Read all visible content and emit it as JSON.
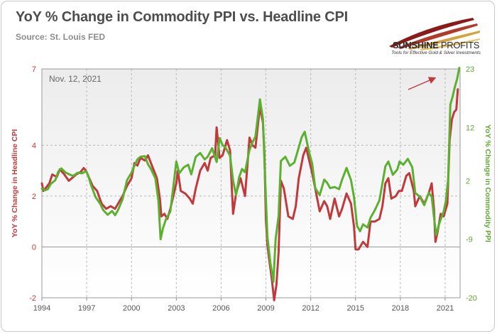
{
  "title": "YoY % Change in Commodity PPI vs. Headline CPI",
  "subtitle": "Source: St. Louis FED",
  "logo": {
    "brand": "SUNSHINE PROFITS",
    "brand_bold": "SUNSHINE",
    "brand_light": " PROFITS",
    "tagline": "Tools for Effective Gold & Silver Investments"
  },
  "colors": {
    "cpi": "#c0393b",
    "ppi": "#5bb12f",
    "left_axis_text": "#c0393b",
    "right_axis_text": "#5fa832",
    "arrow": "#c0393b"
  },
  "chart_data": {
    "type": "line",
    "annotation": "Nov. 12, 2021",
    "x_range": [
      1994.0,
      2022.0
    ],
    "x_ticks": [
      1994,
      1997,
      2000,
      2003,
      2006,
      2009,
      2012,
      2015,
      2018,
      2021
    ],
    "left_axis": {
      "label": "YoY % Change in Headline CPI",
      "range": [
        -2,
        7
      ],
      "ticks": [
        -2,
        0,
        2,
        4,
        7
      ]
    },
    "right_axis": {
      "label": "YoY % Change in Commodity PPI",
      "range": [
        -20,
        23
      ],
      "ticks": [
        -20,
        -9,
        2,
        12,
        23
      ]
    },
    "series": [
      {
        "name": "Headline CPI (YoY %)",
        "axis": "left",
        "points": [
          [
            1994.0,
            2.5
          ],
          [
            1994.1,
            2.2
          ],
          [
            1994.3,
            2.35
          ],
          [
            1994.5,
            2.5
          ],
          [
            1994.7,
            2.85
          ],
          [
            1995.0,
            2.75
          ],
          [
            1995.2,
            3.05
          ],
          [
            1995.5,
            2.85
          ],
          [
            1995.8,
            2.6
          ],
          [
            1996.0,
            2.7
          ],
          [
            1996.3,
            2.85
          ],
          [
            1996.6,
            2.95
          ],
          [
            1996.8,
            3.1
          ],
          [
            1996.95,
            3.0
          ],
          [
            1997.1,
            2.8
          ],
          [
            1997.4,
            2.4
          ],
          [
            1997.7,
            2.2
          ],
          [
            1998.0,
            1.7
          ],
          [
            1998.3,
            1.5
          ],
          [
            1998.6,
            1.6
          ],
          [
            1998.9,
            1.5
          ],
          [
            1999.1,
            1.7
          ],
          [
            1999.4,
            2.0
          ],
          [
            1999.7,
            2.4
          ],
          [
            2000.0,
            2.7
          ],
          [
            2000.2,
            3.3
          ],
          [
            2000.4,
            3.2
          ],
          [
            2000.6,
            3.5
          ],
          [
            2000.9,
            3.4
          ],
          [
            2001.1,
            3.6
          ],
          [
            2001.3,
            3.3
          ],
          [
            2001.5,
            3.0
          ],
          [
            2001.7,
            2.7
          ],
          [
            2001.9,
            1.9
          ],
          [
            2002.0,
            1.2
          ],
          [
            2002.2,
            1.3
          ],
          [
            2002.4,
            1.1
          ],
          [
            2002.6,
            1.5
          ],
          [
            2002.8,
            2.0
          ],
          [
            2003.0,
            2.5
          ],
          [
            2003.1,
            3.0
          ],
          [
            2003.3,
            2.2
          ],
          [
            2003.6,
            2.1
          ],
          [
            2003.9,
            1.9
          ],
          [
            2004.1,
            1.7
          ],
          [
            2004.3,
            2.3
          ],
          [
            2004.6,
            3.0
          ],
          [
            2004.9,
            3.3
          ],
          [
            2005.1,
            3.0
          ],
          [
            2005.3,
            3.5
          ],
          [
            2005.6,
            3.6
          ],
          [
            2005.7,
            4.7
          ],
          [
            2005.9,
            3.5
          ],
          [
            2006.1,
            3.6
          ],
          [
            2006.4,
            4.2
          ],
          [
            2006.6,
            3.8
          ],
          [
            2006.8,
            1.3
          ],
          [
            2007.0,
            2.1
          ],
          [
            2007.3,
            2.7
          ],
          [
            2007.6,
            2.0
          ],
          [
            2007.8,
            3.5
          ],
          [
            2007.9,
            4.3
          ],
          [
            2008.1,
            4.0
          ],
          [
            2008.3,
            3.9
          ],
          [
            2008.5,
            5.0
          ],
          [
            2008.6,
            5.5
          ],
          [
            2008.8,
            4.9
          ],
          [
            2008.9,
            3.7
          ],
          [
            2009.0,
            1.1
          ],
          [
            2009.1,
            0.1
          ],
          [
            2009.2,
            -0.4
          ],
          [
            2009.4,
            -1.3
          ],
          [
            2009.55,
            -2.1
          ],
          [
            2009.7,
            -1.5
          ],
          [
            2009.85,
            -0.2
          ],
          [
            2010.0,
            2.6
          ],
          [
            2010.2,
            2.3
          ],
          [
            2010.5,
            1.2
          ],
          [
            2010.8,
            1.1
          ],
          [
            2011.0,
            1.6
          ],
          [
            2011.2,
            2.7
          ],
          [
            2011.5,
            3.6
          ],
          [
            2011.7,
            3.9
          ],
          [
            2011.9,
            3.4
          ],
          [
            2012.1,
            2.9
          ],
          [
            2012.3,
            2.3
          ],
          [
            2012.6,
            1.4
          ],
          [
            2012.9,
            1.8
          ],
          [
            2013.1,
            1.6
          ],
          [
            2013.3,
            1.1
          ],
          [
            2013.6,
            1.9
          ],
          [
            2013.9,
            1.2
          ],
          [
            2014.1,
            1.5
          ],
          [
            2014.4,
            2.1
          ],
          [
            2014.7,
            1.7
          ],
          [
            2014.9,
            0.8
          ],
          [
            2015.0,
            -0.1
          ],
          [
            2015.2,
            -0.1
          ],
          [
            2015.5,
            0.2
          ],
          [
            2015.8,
            0.0
          ],
          [
            2016.0,
            1.0
          ],
          [
            2016.3,
            1.0
          ],
          [
            2016.6,
            1.1
          ],
          [
            2016.8,
            1.6
          ],
          [
            2017.0,
            2.5
          ],
          [
            2017.2,
            2.7
          ],
          [
            2017.4,
            1.9
          ],
          [
            2017.7,
            2.0
          ],
          [
            2017.9,
            2.2
          ],
          [
            2018.1,
            2.2
          ],
          [
            2018.4,
            2.8
          ],
          [
            2018.6,
            2.9
          ],
          [
            2018.9,
            2.2
          ],
          [
            2019.0,
            1.6
          ],
          [
            2019.3,
            2.0
          ],
          [
            2019.6,
            1.7
          ],
          [
            2019.9,
            2.1
          ],
          [
            2020.1,
            2.5
          ],
          [
            2020.25,
            1.5
          ],
          [
            2020.35,
            0.2
          ],
          [
            2020.5,
            0.6
          ],
          [
            2020.7,
            1.3
          ],
          [
            2020.9,
            1.2
          ],
          [
            2021.0,
            1.4
          ],
          [
            2021.15,
            1.7
          ],
          [
            2021.3,
            4.2
          ],
          [
            2021.45,
            5.0
          ],
          [
            2021.6,
            5.3
          ],
          [
            2021.75,
            5.4
          ],
          [
            2021.85,
            6.2
          ]
        ]
      },
      {
        "name": "Commodity PPI (YoY %)",
        "axis": "right",
        "points": [
          [
            1994.0,
            0.5
          ],
          [
            1994.2,
            0.2
          ],
          [
            1994.4,
            0.4
          ],
          [
            1994.6,
            1.4
          ],
          [
            1994.9,
            2.1
          ],
          [
            1995.1,
            3.7
          ],
          [
            1995.3,
            4.3
          ],
          [
            1995.6,
            3.5
          ],
          [
            1995.9,
            3.1
          ],
          [
            1996.1,
            2.9
          ],
          [
            1996.4,
            3.5
          ],
          [
            1996.7,
            3.4
          ],
          [
            1996.95,
            3.8
          ],
          [
            1997.1,
            3.0
          ],
          [
            1997.3,
            1.1
          ],
          [
            1997.6,
            -1.1
          ],
          [
            1997.9,
            -2.3
          ],
          [
            1998.1,
            -3.5
          ],
          [
            1998.4,
            -4.4
          ],
          [
            1998.7,
            -3.7
          ],
          [
            1998.9,
            -4.5
          ],
          [
            1999.1,
            -3.5
          ],
          [
            1999.4,
            -1.5
          ],
          [
            1999.7,
            2.1
          ],
          [
            2000.0,
            3.5
          ],
          [
            2000.2,
            4.8
          ],
          [
            2000.4,
            6.0
          ],
          [
            2000.6,
            6.5
          ],
          [
            2000.9,
            6.6
          ],
          [
            2001.1,
            5.1
          ],
          [
            2001.3,
            4.2
          ],
          [
            2001.6,
            2.4
          ],
          [
            2001.8,
            -1.8
          ],
          [
            2001.95,
            -9.0
          ],
          [
            2002.1,
            -7.0
          ],
          [
            2002.3,
            -5.3
          ],
          [
            2002.6,
            -3.8
          ],
          [
            2002.8,
            0.8
          ],
          [
            2003.0,
            5.6
          ],
          [
            2003.2,
            3.4
          ],
          [
            2003.5,
            4.5
          ],
          [
            2003.8,
            5.0
          ],
          [
            2004.0,
            3.2
          ],
          [
            2004.3,
            6.5
          ],
          [
            2004.6,
            7.2
          ],
          [
            2004.9,
            6.0
          ],
          [
            2005.1,
            6.5
          ],
          [
            2005.4,
            8.1
          ],
          [
            2005.7,
            5.5
          ],
          [
            2005.9,
            10.0
          ],
          [
            2006.1,
            8.7
          ],
          [
            2006.3,
            8.2
          ],
          [
            2006.6,
            6.7
          ],
          [
            2006.8,
            2.0
          ],
          [
            2007.0,
            -0.7
          ],
          [
            2007.2,
            2.6
          ],
          [
            2007.4,
            4.2
          ],
          [
            2007.6,
            3.6
          ],
          [
            2007.9,
            7.8
          ],
          [
            2008.1,
            9.2
          ],
          [
            2008.3,
            10.3
          ],
          [
            2008.6,
            17.3
          ],
          [
            2008.8,
            13.6
          ],
          [
            2008.95,
            2.1
          ],
          [
            2009.1,
            -8.5
          ],
          [
            2009.3,
            -13.4
          ],
          [
            2009.5,
            -17.0
          ],
          [
            2009.65,
            -9.0
          ],
          [
            2009.85,
            -4.6
          ],
          [
            2010.0,
            5.7
          ],
          [
            2010.3,
            6.5
          ],
          [
            2010.6,
            4.8
          ],
          [
            2010.9,
            5.4
          ],
          [
            2011.1,
            7.3
          ],
          [
            2011.4,
            10.2
          ],
          [
            2011.6,
            11.2
          ],
          [
            2011.9,
            7.3
          ],
          [
            2012.1,
            5.2
          ],
          [
            2012.3,
            0.6
          ],
          [
            2012.6,
            -0.7
          ],
          [
            2012.9,
            2.2
          ],
          [
            2013.1,
            1.6
          ],
          [
            2013.3,
            0.6
          ],
          [
            2013.6,
            0.8
          ],
          [
            2013.9,
            0.4
          ],
          [
            2014.1,
            2.2
          ],
          [
            2014.4,
            4.4
          ],
          [
            2014.7,
            2.1
          ],
          [
            2014.9,
            -1.1
          ],
          [
            2015.1,
            -6.5
          ],
          [
            2015.3,
            -7.5
          ],
          [
            2015.5,
            -6.2
          ],
          [
            2015.8,
            -6.8
          ],
          [
            2016.0,
            -5.0
          ],
          [
            2016.3,
            -3.5
          ],
          [
            2016.6,
            -1.7
          ],
          [
            2016.8,
            1.5
          ],
          [
            2017.0,
            4.7
          ],
          [
            2017.2,
            5.6
          ],
          [
            2017.5,
            3.1
          ],
          [
            2017.8,
            4.1
          ],
          [
            2017.95,
            5.6
          ],
          [
            2018.2,
            5.0
          ],
          [
            2018.5,
            6.1
          ],
          [
            2018.8,
            4.5
          ],
          [
            2019.0,
            -0.3
          ],
          [
            2019.3,
            -1.0
          ],
          [
            2019.6,
            -2.6
          ],
          [
            2019.9,
            -0.3
          ],
          [
            2020.1,
            -1.0
          ],
          [
            2020.25,
            -4.8
          ],
          [
            2020.4,
            -8.2
          ],
          [
            2020.6,
            -6.1
          ],
          [
            2020.9,
            -3.8
          ],
          [
            2021.05,
            -1.8
          ],
          [
            2021.2,
            2.3
          ],
          [
            2021.35,
            16.3
          ],
          [
            2021.5,
            17.8
          ],
          [
            2021.65,
            19.6
          ],
          [
            2021.8,
            21.1
          ],
          [
            2021.95,
            23.2
          ]
        ]
      }
    ]
  }
}
